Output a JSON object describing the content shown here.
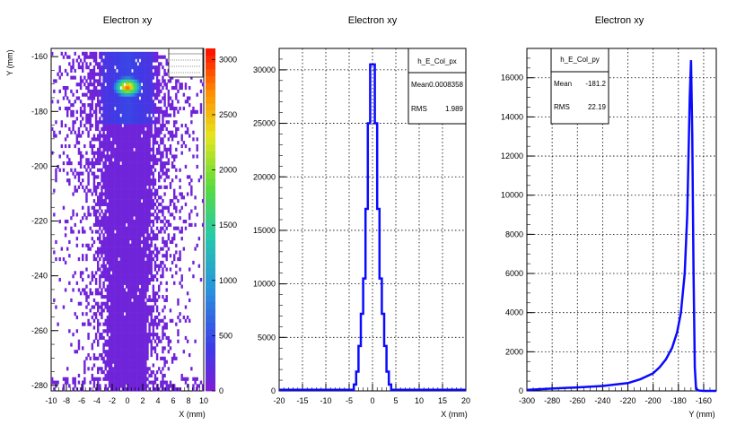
{
  "chart_data": [
    {
      "type": "heatmap",
      "title": "Electron xy",
      "xlabel": "X (mm)",
      "ylabel": "Y (mm)",
      "xlim": [
        -10,
        10
      ],
      "ylim": [
        -282,
        -157
      ],
      "x_ticks": [
        -10,
        -8,
        -6,
        -4,
        -2,
        0,
        2,
        4,
        6,
        8,
        10
      ],
      "y_ticks": [
        -280,
        -260,
        -240,
        -220,
        -200,
        -180,
        -160
      ],
      "colorbar_range": [
        0,
        3100
      ],
      "colorbar_ticks": [
        0,
        500,
        1000,
        1500,
        2000,
        2500,
        3000
      ],
      "hotspot": {
        "x": 0,
        "y": -171,
        "value": 3000
      },
      "colors": {
        "low": "#7a1fd6",
        "mid": "#32b4c8",
        "high": "#ff1a00"
      }
    },
    {
      "type": "bar",
      "title": "Electron xy",
      "xlabel": "X (mm)",
      "ylabel": "",
      "xlim": [
        -20,
        20
      ],
      "ylim": [
        0,
        32000
      ],
      "x_ticks": [
        -20,
        -15,
        -10,
        -5,
        0,
        5,
        10,
        15,
        20
      ],
      "y_ticks": [
        0,
        5000,
        10000,
        15000,
        20000,
        25000,
        30000
      ],
      "stats": {
        "name": "h_E_Col_px",
        "mean_label": "Mean",
        "mean": "0.0008358",
        "rms_label": "RMS",
        "rms": "1.989"
      },
      "bin_edges": [
        -20,
        -4,
        -3.5,
        -3,
        -2.5,
        -2,
        -1.5,
        -1,
        -0.5,
        0,
        0.5,
        1,
        1.5,
        2,
        2.5,
        3,
        3.5,
        4,
        20
      ],
      "values": [
        100,
        600,
        1800,
        4200,
        7200,
        10500,
        17000,
        25000,
        30500,
        30500,
        25000,
        17000,
        10500,
        7200,
        4200,
        1800,
        600,
        100
      ],
      "line_color": "#0a0aff"
    },
    {
      "type": "line",
      "title": "Electron xy",
      "xlabel": "Y (mm)",
      "ylabel": "",
      "xlim": [
        -300,
        -150
      ],
      "ylim": [
        0,
        17500
      ],
      "x_ticks": [
        -300,
        -280,
        -260,
        -240,
        -220,
        -200,
        -180,
        -160
      ],
      "y_ticks": [
        0,
        2000,
        4000,
        6000,
        8000,
        10000,
        12000,
        14000,
        16000
      ],
      "stats": {
        "name": "h_E_Col_py",
        "mean_label": "Mean",
        "mean": "-181.2",
        "rms_label": "RMS",
        "rms": "22.19"
      },
      "x": [
        -300,
        -280,
        -260,
        -240,
        -220,
        -210,
        -200,
        -195,
        -190,
        -185,
        -181,
        -178,
        -175,
        -173,
        -172,
        -171,
        -170,
        -169,
        -168,
        -167,
        -166,
        -164,
        -160,
        -150
      ],
      "y": [
        50,
        120,
        180,
        250,
        400,
        600,
        900,
        1200,
        1600,
        2200,
        3000,
        4000,
        6000,
        9000,
        12000,
        15000,
        16900,
        13000,
        6000,
        1200,
        100,
        20,
        0,
        0
      ],
      "line_color": "#0a0aff"
    }
  ]
}
